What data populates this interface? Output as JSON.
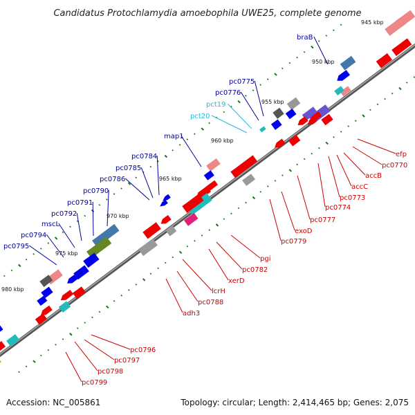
{
  "title": "Candidatus Protochlamydia amoebophila UWE25, complete genome",
  "footer": {
    "accession": "Accession: NC_005861",
    "stats": "Topology: circular; Length: 2,414,465 bp; Genes: 2,075"
  },
  "colors": {
    "forward": "#0000ee",
    "reverse": "#ee0000",
    "forward_label": "#000099",
    "reverse_label": "#cc0000",
    "rna_label": "#22bbdd",
    "tick": "#117711",
    "backbone": "#777777"
  },
  "kbp_labels": [
    "945 kbp",
    "950 kbp",
    "955 kbp",
    "960 kbp",
    "965 kbp",
    "970 kbp",
    "975 kbp",
    "980 kbp"
  ],
  "forward_labels": [
    "braB",
    "pc0775",
    "pc0776",
    "pct19",
    "pct20",
    "map1",
    "pc0784",
    "pc0785",
    "pc0786",
    "pc0790",
    "pc0791",
    "pc0792",
    "mscL",
    "pc0794",
    "pc0795"
  ],
  "reverse_labels": [
    "efp",
    "pc0770",
    "accB",
    "accC",
    "pc0773",
    "pc0774",
    "pc0777",
    "exoD",
    "pc0779",
    "pgi",
    "pc0782",
    "xerD",
    "lcrH",
    "pc0788",
    "adh3",
    "pc0796",
    "pc0797",
    "pc0798",
    "pc0799"
  ]
}
